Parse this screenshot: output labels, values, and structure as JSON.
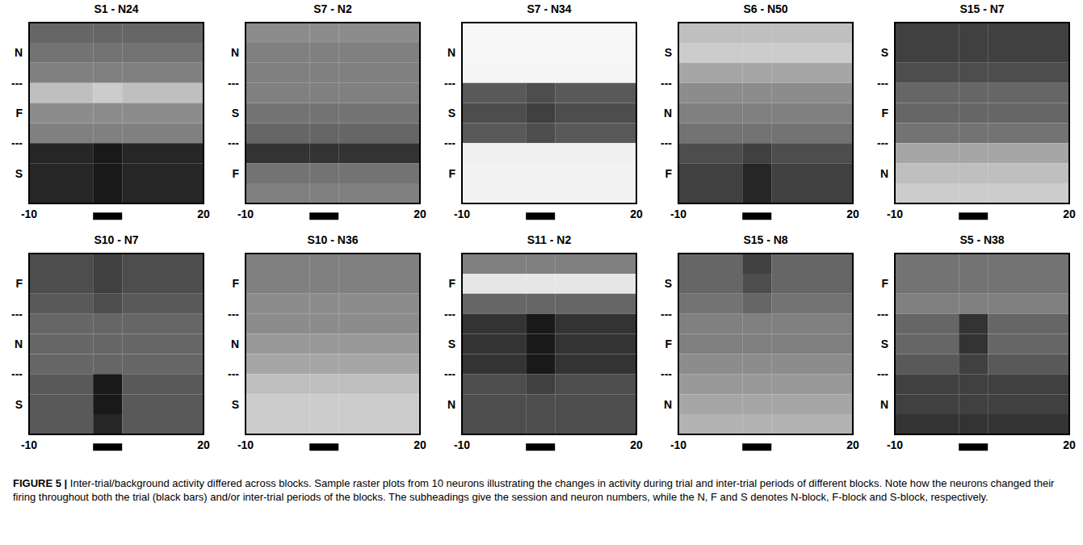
{
  "chart_data": [
    {
      "type": "heatmap",
      "title": "S1 - N24",
      "xlim": [
        -10,
        20
      ],
      "xticks": [
        -10,
        20
      ],
      "ylim": [
        0,
        9
      ],
      "yticks": [
        {
          "value": 7.5,
          "label": "N"
        },
        {
          "value": 6,
          "label": "---"
        },
        {
          "value": 4.5,
          "label": "F"
        },
        {
          "value": 3,
          "label": "---"
        },
        {
          "value": 1.5,
          "label": "S"
        }
      ],
      "x_bins": [
        -10,
        1,
        6,
        20
      ],
      "trial_bar": [
        1,
        6
      ],
      "cell_range": [
        0,
        1
      ],
      "cells": [
        [
          0.6,
          0.6,
          0.6
        ],
        [
          0.55,
          0.55,
          0.55
        ],
        [
          0.5,
          0.5,
          0.5
        ],
        [
          0.25,
          0.2,
          0.25
        ],
        [
          0.45,
          0.45,
          0.45
        ],
        [
          0.5,
          0.5,
          0.5
        ],
        [
          0.85,
          0.9,
          0.85
        ],
        [
          0.85,
          0.9,
          0.85
        ],
        [
          0.85,
          0.9,
          0.85
        ]
      ]
    },
    {
      "type": "heatmap",
      "title": "S7 - N2",
      "xlim": [
        -10,
        20
      ],
      "xticks": [
        -10,
        20
      ],
      "ylim": [
        0,
        9
      ],
      "yticks": [
        {
          "value": 7.5,
          "label": "N"
        },
        {
          "value": 6,
          "label": "---"
        },
        {
          "value": 4.5,
          "label": "S"
        },
        {
          "value": 3,
          "label": "---"
        },
        {
          "value": 1.5,
          "label": "F"
        }
      ],
      "x_bins": [
        -10,
        1,
        6,
        20
      ],
      "trial_bar": [
        1,
        6
      ],
      "cell_range": [
        0,
        1
      ],
      "cells": [
        [
          0.45,
          0.45,
          0.45
        ],
        [
          0.5,
          0.5,
          0.5
        ],
        [
          0.5,
          0.5,
          0.5
        ],
        [
          0.5,
          0.5,
          0.5
        ],
        [
          0.55,
          0.55,
          0.55
        ],
        [
          0.6,
          0.6,
          0.6
        ],
        [
          0.8,
          0.8,
          0.8
        ],
        [
          0.55,
          0.55,
          0.55
        ],
        [
          0.5,
          0.5,
          0.5
        ]
      ]
    },
    {
      "type": "heatmap",
      "title": "S7 - N34",
      "xlim": [
        -10,
        20
      ],
      "xticks": [
        -10,
        20
      ],
      "ylim": [
        0,
        9
      ],
      "yticks": [
        {
          "value": 7.5,
          "label": "N"
        },
        {
          "value": 6,
          "label": "---"
        },
        {
          "value": 4.5,
          "label": "S"
        },
        {
          "value": 3,
          "label": "---"
        },
        {
          "value": 1.5,
          "label": "F"
        }
      ],
      "x_bins": [
        -10,
        1,
        6,
        20
      ],
      "trial_bar": [
        1,
        6
      ],
      "cell_range": [
        0,
        1
      ],
      "cells": [
        [
          0.03,
          0.03,
          0.03
        ],
        [
          0.03,
          0.03,
          0.03
        ],
        [
          0.04,
          0.04,
          0.04
        ],
        [
          0.65,
          0.7,
          0.65
        ],
        [
          0.7,
          0.75,
          0.7
        ],
        [
          0.65,
          0.7,
          0.65
        ],
        [
          0.06,
          0.06,
          0.06
        ],
        [
          0.05,
          0.05,
          0.05
        ],
        [
          0.05,
          0.05,
          0.05
        ]
      ]
    },
    {
      "type": "heatmap",
      "title": "S6 - N50",
      "xlim": [
        -10,
        20
      ],
      "xticks": [
        -10,
        20
      ],
      "ylim": [
        0,
        9
      ],
      "yticks": [
        {
          "value": 7.5,
          "label": "S"
        },
        {
          "value": 6,
          "label": "---"
        },
        {
          "value": 4.5,
          "label": "N"
        },
        {
          "value": 3,
          "label": "---"
        },
        {
          "value": 1.5,
          "label": "F"
        }
      ],
      "x_bins": [
        -10,
        1,
        6,
        20
      ],
      "trial_bar": [
        1,
        6
      ],
      "cell_range": [
        0,
        1
      ],
      "cells": [
        [
          0.25,
          0.25,
          0.25
        ],
        [
          0.2,
          0.2,
          0.2
        ],
        [
          0.35,
          0.35,
          0.35
        ],
        [
          0.45,
          0.45,
          0.45
        ],
        [
          0.5,
          0.5,
          0.5
        ],
        [
          0.55,
          0.55,
          0.55
        ],
        [
          0.7,
          0.75,
          0.7
        ],
        [
          0.75,
          0.85,
          0.75
        ],
        [
          0.75,
          0.85,
          0.75
        ]
      ]
    },
    {
      "type": "heatmap",
      "title": "S15 - N7",
      "xlim": [
        -10,
        20
      ],
      "xticks": [
        -10,
        20
      ],
      "ylim": [
        0,
        9
      ],
      "yticks": [
        {
          "value": 7.5,
          "label": "S"
        },
        {
          "value": 6,
          "label": "---"
        },
        {
          "value": 4.5,
          "label": "F"
        },
        {
          "value": 3,
          "label": "---"
        },
        {
          "value": 1.5,
          "label": "N"
        }
      ],
      "x_bins": [
        -10,
        1,
        6,
        20
      ],
      "trial_bar": [
        1,
        6
      ],
      "cell_range": [
        0,
        1
      ],
      "cells": [
        [
          0.75,
          0.75,
          0.75
        ],
        [
          0.75,
          0.75,
          0.75
        ],
        [
          0.7,
          0.7,
          0.7
        ],
        [
          0.6,
          0.6,
          0.6
        ],
        [
          0.6,
          0.6,
          0.6
        ],
        [
          0.55,
          0.55,
          0.55
        ],
        [
          0.35,
          0.35,
          0.35
        ],
        [
          0.25,
          0.25,
          0.25
        ],
        [
          0.2,
          0.2,
          0.2
        ]
      ]
    },
    {
      "type": "heatmap",
      "title": "S10 - N7",
      "xlim": [
        -10,
        20
      ],
      "xticks": [
        -10,
        20
      ],
      "ylim": [
        0,
        9
      ],
      "yticks": [
        {
          "value": 7.5,
          "label": "F"
        },
        {
          "value": 6,
          "label": "---"
        },
        {
          "value": 4.5,
          "label": "N"
        },
        {
          "value": 3,
          "label": "---"
        },
        {
          "value": 1.5,
          "label": "S"
        }
      ],
      "x_bins": [
        -10,
        1,
        6,
        20
      ],
      "trial_bar": [
        1,
        6
      ],
      "cell_range": [
        0,
        1
      ],
      "cells": [
        [
          0.7,
          0.75,
          0.7
        ],
        [
          0.7,
          0.75,
          0.7
        ],
        [
          0.65,
          0.7,
          0.65
        ],
        [
          0.6,
          0.6,
          0.6
        ],
        [
          0.6,
          0.6,
          0.6
        ],
        [
          0.6,
          0.6,
          0.6
        ],
        [
          0.65,
          0.9,
          0.65
        ],
        [
          0.65,
          0.9,
          0.65
        ],
        [
          0.65,
          0.85,
          0.65
        ]
      ]
    },
    {
      "type": "heatmap",
      "title": "S10 - N36",
      "xlim": [
        -10,
        20
      ],
      "xticks": [
        -10,
        20
      ],
      "ylim": [
        0,
        9
      ],
      "yticks": [
        {
          "value": 7.5,
          "label": "F"
        },
        {
          "value": 6,
          "label": "---"
        },
        {
          "value": 4.5,
          "label": "N"
        },
        {
          "value": 3,
          "label": "---"
        },
        {
          "value": 1.5,
          "label": "S"
        }
      ],
      "x_bins": [
        -10,
        1,
        6,
        20
      ],
      "trial_bar": [
        1,
        6
      ],
      "cell_range": [
        0,
        1
      ],
      "cells": [
        [
          0.5,
          0.5,
          0.5
        ],
        [
          0.5,
          0.5,
          0.5
        ],
        [
          0.45,
          0.45,
          0.45
        ],
        [
          0.45,
          0.45,
          0.45
        ],
        [
          0.4,
          0.4,
          0.4
        ],
        [
          0.35,
          0.35,
          0.35
        ],
        [
          0.25,
          0.25,
          0.25
        ],
        [
          0.2,
          0.2,
          0.2
        ],
        [
          0.2,
          0.2,
          0.2
        ]
      ]
    },
    {
      "type": "heatmap",
      "title": "S11 - N2",
      "xlim": [
        -10,
        20
      ],
      "xticks": [
        -10,
        20
      ],
      "ylim": [
        0,
        9
      ],
      "yticks": [
        {
          "value": 7.5,
          "label": "F"
        },
        {
          "value": 6,
          "label": "---"
        },
        {
          "value": 4.5,
          "label": "S"
        },
        {
          "value": 3,
          "label": "---"
        },
        {
          "value": 1.5,
          "label": "N"
        }
      ],
      "x_bins": [
        -10,
        1,
        6,
        20
      ],
      "trial_bar": [
        1,
        6
      ],
      "cell_range": [
        0,
        1
      ],
      "cells": [
        [
          0.5,
          0.5,
          0.5
        ],
        [
          0.1,
          0.1,
          0.1
        ],
        [
          0.6,
          0.6,
          0.6
        ],
        [
          0.8,
          0.9,
          0.8
        ],
        [
          0.8,
          0.9,
          0.8
        ],
        [
          0.8,
          0.9,
          0.8
        ],
        [
          0.7,
          0.75,
          0.7
        ],
        [
          0.7,
          0.7,
          0.7
        ],
        [
          0.7,
          0.7,
          0.7
        ]
      ]
    },
    {
      "type": "heatmap",
      "title": "S15 - N8",
      "xlim": [
        -10,
        20
      ],
      "xticks": [
        -10,
        20
      ],
      "ylim": [
        0,
        9
      ],
      "yticks": [
        {
          "value": 7.5,
          "label": "S"
        },
        {
          "value": 6,
          "label": "---"
        },
        {
          "value": 4.5,
          "label": "F"
        },
        {
          "value": 3,
          "label": "---"
        },
        {
          "value": 1.5,
          "label": "N"
        }
      ],
      "x_bins": [
        -10,
        1,
        6,
        20
      ],
      "trial_bar": [
        1,
        6
      ],
      "cell_range": [
        0,
        1
      ],
      "cells": [
        [
          0.6,
          0.75,
          0.6
        ],
        [
          0.6,
          0.7,
          0.6
        ],
        [
          0.55,
          0.6,
          0.55
        ],
        [
          0.5,
          0.5,
          0.5
        ],
        [
          0.5,
          0.5,
          0.5
        ],
        [
          0.45,
          0.45,
          0.45
        ],
        [
          0.4,
          0.4,
          0.4
        ],
        [
          0.35,
          0.35,
          0.35
        ],
        [
          0.3,
          0.3,
          0.3
        ]
      ]
    },
    {
      "type": "heatmap",
      "title": "S5 - N38",
      "xlim": [
        -10,
        20
      ],
      "xticks": [
        -10,
        20
      ],
      "ylim": [
        0,
        9
      ],
      "yticks": [
        {
          "value": 7.5,
          "label": "F"
        },
        {
          "value": 6,
          "label": "---"
        },
        {
          "value": 4.5,
          "label": "S"
        },
        {
          "value": 3,
          "label": "---"
        },
        {
          "value": 1.5,
          "label": "N"
        }
      ],
      "x_bins": [
        -10,
        1,
        6,
        20
      ],
      "trial_bar": [
        1,
        6
      ],
      "cell_range": [
        0,
        1
      ],
      "cells": [
        [
          0.55,
          0.55,
          0.55
        ],
        [
          0.55,
          0.55,
          0.55
        ],
        [
          0.5,
          0.5,
          0.5
        ],
        [
          0.6,
          0.8,
          0.6
        ],
        [
          0.6,
          0.8,
          0.6
        ],
        [
          0.65,
          0.75,
          0.65
        ],
        [
          0.75,
          0.75,
          0.75
        ],
        [
          0.75,
          0.75,
          0.75
        ],
        [
          0.8,
          0.8,
          0.8
        ]
      ]
    }
  ],
  "caption": {
    "label": "FIGURE 5 |",
    "text": "Inter-trial/background activity differed across blocks. Sample raster plots from 10 neurons illustrating the changes in activity during trial and inter-trial periods of different blocks. Note how the neurons changed their firing throughout both the trial (black bars) and/or inter-trial periods of the blocks. The subheadings give the session and neuron numbers, while the N, F and S denotes N-block, F-block and S-block, respectively."
  }
}
